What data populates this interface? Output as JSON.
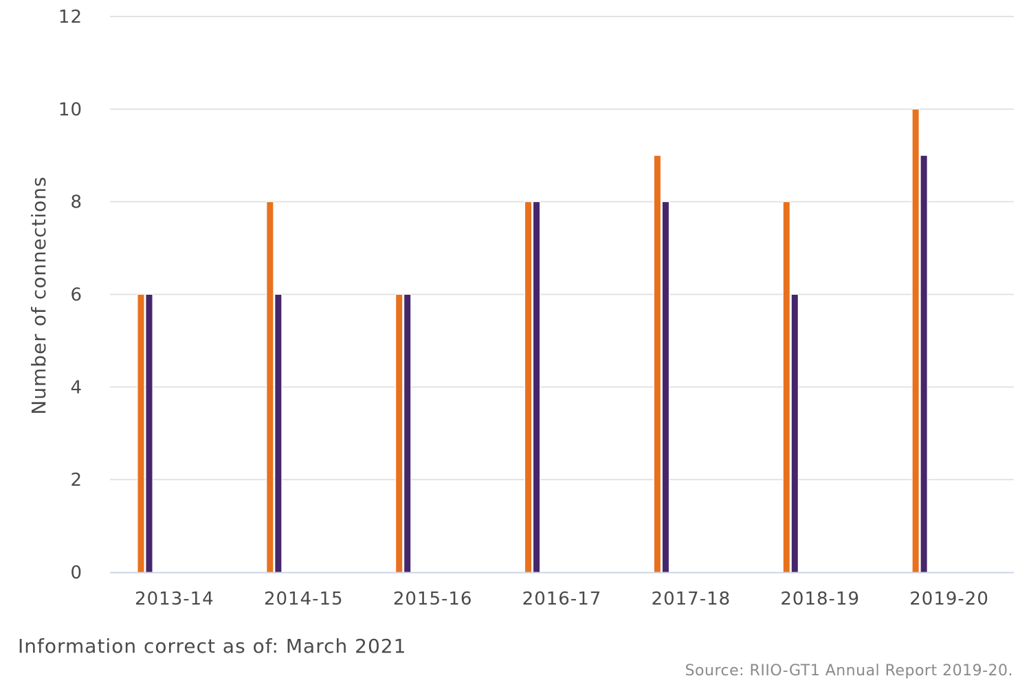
{
  "chart_data": {
    "type": "bar",
    "categories": [
      "2013-14",
      "2014-15",
      "2015-16",
      "2016-17",
      "2017-18",
      "2018-19",
      "2019-20"
    ],
    "series": [
      {
        "values": [
          6,
          8,
          6,
          8,
          9,
          8,
          10
        ],
        "color": "#e8711e"
      },
      {
        "values": [
          6,
          6,
          6,
          8,
          8,
          6,
          9
        ],
        "color": "#45266b"
      }
    ],
    "ylabel": "Number of connections",
    "xlabel": "",
    "ylim": [
      0,
      12
    ],
    "yticks": [
      0,
      2,
      4,
      6,
      8,
      10,
      12
    ],
    "grid": true,
    "gridColor": "#e3e3e3",
    "axisColor": "#cdd3e6"
  },
  "footer": {
    "note": "Information correct as of: March 2021",
    "source": "Source: RIIO-GT1 Annual Report 2019-20."
  }
}
